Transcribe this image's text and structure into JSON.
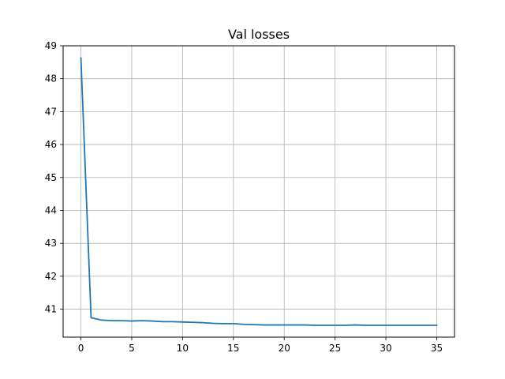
{
  "chart_data": {
    "type": "line",
    "title": "Val losses",
    "xlabel": "",
    "ylabel": "",
    "xlim": [
      -1.75,
      36.75
    ],
    "ylim": [
      40.15,
      49.0
    ],
    "xticks": [
      0,
      5,
      10,
      15,
      20,
      25,
      30,
      35
    ],
    "yticks": [
      41,
      42,
      43,
      44,
      45,
      46,
      47,
      48,
      49
    ],
    "grid": true,
    "legend": "none",
    "series": [
      {
        "color": "#1f77b4",
        "x": [
          0,
          1,
          2,
          3,
          4,
          5,
          6,
          7,
          8,
          9,
          10,
          11,
          12,
          13,
          14,
          15,
          16,
          17,
          18,
          19,
          20,
          21,
          22,
          23,
          24,
          25,
          26,
          27,
          28,
          29,
          30,
          31,
          32,
          33,
          34,
          35
        ],
        "values": [
          48.63,
          40.74,
          40.67,
          40.65,
          40.65,
          40.64,
          40.65,
          40.64,
          40.62,
          40.62,
          40.61,
          40.6,
          40.59,
          40.57,
          40.56,
          40.56,
          40.54,
          40.53,
          40.52,
          40.52,
          40.52,
          40.52,
          40.52,
          40.51,
          40.51,
          40.51,
          40.51,
          40.52,
          40.51,
          40.51,
          40.51,
          40.51,
          40.51,
          40.51,
          40.51,
          40.51
        ]
      }
    ]
  }
}
